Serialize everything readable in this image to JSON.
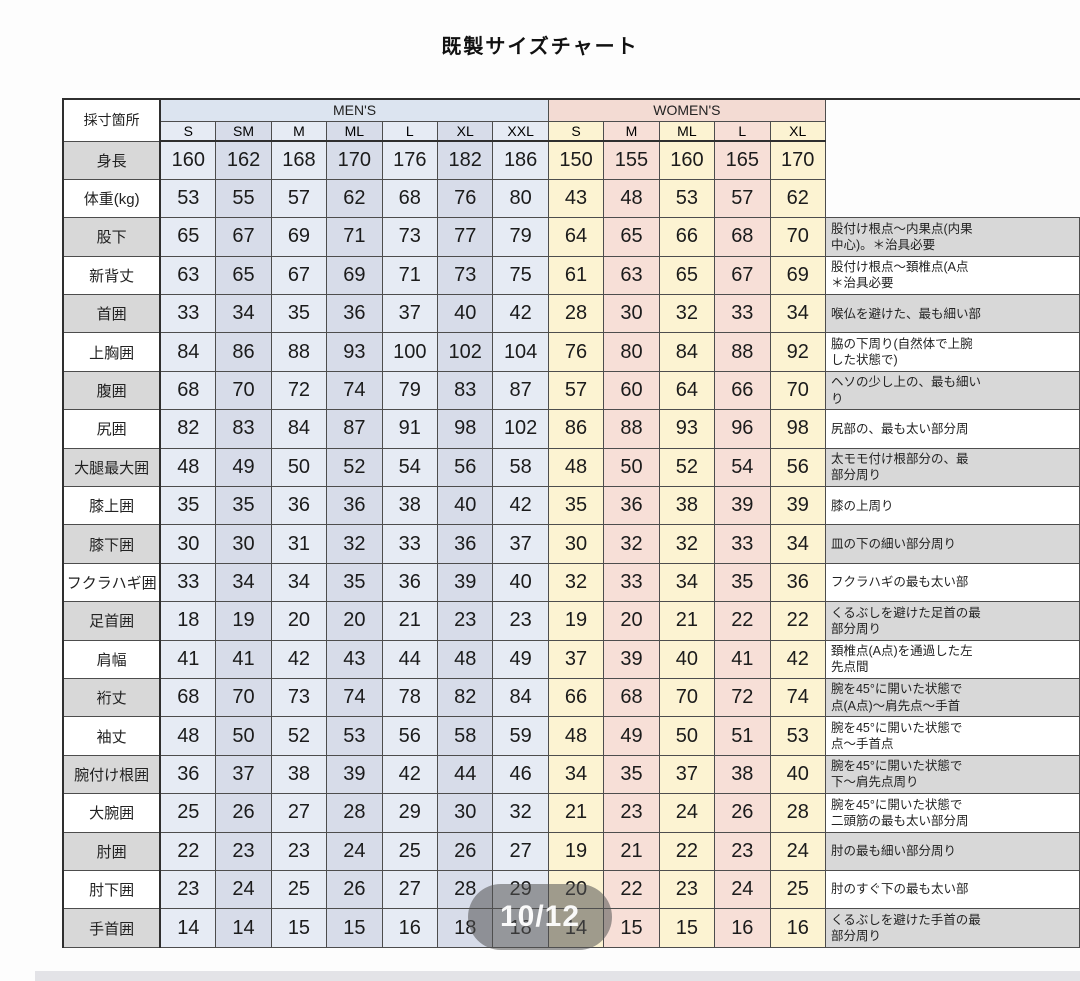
{
  "title": "既製サイズチャート",
  "overlay": {
    "page_indicator": "10/12"
  },
  "colors": {
    "mens_band": "#dce4f0",
    "womens_band": "#f3dbd3",
    "mens_col_light": "#e6ebf4",
    "mens_col_dark": "#d7dce9",
    "womens_col_yellow": "#fcf3d2",
    "womens_col_pink": "#f7dfd7",
    "label_grey": "#d8d8d8",
    "border": "#4d4d4d",
    "pill_bg": "rgba(82,82,82,0.55)"
  },
  "chart_data": {
    "type": "table",
    "title": "既製サイズチャート",
    "corner_header": "採寸箇所",
    "groups": [
      {
        "label": "MEN'S",
        "sizes": [
          "S",
          "SM",
          "M",
          "ML",
          "L",
          "XL",
          "XXL"
        ]
      },
      {
        "label": "WOMEN'S",
        "sizes": [
          "S",
          "M",
          "ML",
          "L",
          "XL"
        ]
      }
    ],
    "rows": [
      {
        "label": "身長",
        "men": [
          160,
          162,
          168,
          170,
          176,
          182,
          186
        ],
        "women": [
          150,
          155,
          160,
          165,
          170
        ],
        "note": ""
      },
      {
        "label": "体重(kg)",
        "men": [
          53,
          55,
          57,
          62,
          68,
          76,
          80
        ],
        "women": [
          43,
          48,
          53,
          57,
          62
        ],
        "note": ""
      },
      {
        "label": "股下",
        "men": [
          65,
          67,
          69,
          71,
          73,
          77,
          79
        ],
        "women": [
          64,
          65,
          66,
          68,
          70
        ],
        "note": "股付け根点～内果点(内果\n中心)。＊治具必要"
      },
      {
        "label": "新背丈",
        "men": [
          63,
          65,
          67,
          69,
          71,
          73,
          75
        ],
        "women": [
          61,
          63,
          65,
          67,
          69
        ],
        "note": "股付け根点～頚椎点(A点\n＊治具必要"
      },
      {
        "label": "首囲",
        "men": [
          33,
          34,
          35,
          36,
          37,
          40,
          42
        ],
        "women": [
          28,
          30,
          32,
          33,
          34
        ],
        "note": "喉仏を避けた、最も細い部"
      },
      {
        "label": "上胸囲",
        "men": [
          84,
          86,
          88,
          93,
          100,
          102,
          104
        ],
        "women": [
          76,
          80,
          84,
          88,
          92
        ],
        "note": "脇の下周り(自然体で上腕\nした状態で)"
      },
      {
        "label": "腹囲",
        "men": [
          68,
          70,
          72,
          74,
          79,
          83,
          87
        ],
        "women": [
          57,
          60,
          64,
          66,
          70
        ],
        "note": "ヘソの少し上の、最も細い\nり"
      },
      {
        "label": "尻囲",
        "men": [
          82,
          83,
          84,
          87,
          91,
          98,
          102
        ],
        "women": [
          86,
          88,
          93,
          96,
          98
        ],
        "note": "尻部の、最も太い部分周"
      },
      {
        "label": "大腿最大囲",
        "men": [
          48,
          49,
          50,
          52,
          54,
          56,
          58
        ],
        "women": [
          48,
          50,
          52,
          54,
          56
        ],
        "note": "太モモ付け根部分の、最\n部分周り"
      },
      {
        "label": "膝上囲",
        "men": [
          35,
          35,
          36,
          36,
          38,
          40,
          42
        ],
        "women": [
          35,
          36,
          38,
          39,
          39
        ],
        "note": "膝の上周り"
      },
      {
        "label": "膝下囲",
        "men": [
          30,
          30,
          31,
          32,
          33,
          36,
          37
        ],
        "women": [
          30,
          32,
          32,
          33,
          34
        ],
        "note": "皿の下の細い部分周り"
      },
      {
        "label": "フクラハギ囲",
        "men": [
          33,
          34,
          34,
          35,
          36,
          39,
          40
        ],
        "women": [
          32,
          33,
          34,
          35,
          36
        ],
        "note": "フクラハギの最も太い部"
      },
      {
        "label": "足首囲",
        "men": [
          18,
          19,
          20,
          20,
          21,
          23,
          23
        ],
        "women": [
          19,
          20,
          21,
          22,
          22
        ],
        "note": "くるぶしを避けた足首の最\n部分周り"
      },
      {
        "label": "肩幅",
        "men": [
          41,
          41,
          42,
          43,
          44,
          48,
          49
        ],
        "women": [
          37,
          39,
          40,
          41,
          42
        ],
        "note": "頚椎点(A点)を通過した左\n先点間"
      },
      {
        "label": "裄丈",
        "men": [
          68,
          70,
          73,
          74,
          78,
          82,
          84
        ],
        "women": [
          66,
          68,
          70,
          72,
          74
        ],
        "note": "腕を45°に開いた状態で\n点(A点)～肩先点～手首"
      },
      {
        "label": "袖丈",
        "men": [
          48,
          50,
          52,
          53,
          56,
          58,
          59
        ],
        "women": [
          48,
          49,
          50,
          51,
          53
        ],
        "note": "腕を45°に開いた状態で\n点～手首点"
      },
      {
        "label": "腕付け根囲",
        "men": [
          36,
          37,
          38,
          39,
          42,
          44,
          46
        ],
        "women": [
          34,
          35,
          37,
          38,
          40
        ],
        "note": "腕を45°に開いた状態で\n下～肩先点周り"
      },
      {
        "label": "大腕囲",
        "men": [
          25,
          26,
          27,
          28,
          29,
          30,
          32
        ],
        "women": [
          21,
          23,
          24,
          26,
          28
        ],
        "note": "腕を45°に開いた状態で\n二頭筋の最も太い部分周"
      },
      {
        "label": "肘囲",
        "men": [
          22,
          23,
          23,
          24,
          25,
          26,
          27
        ],
        "women": [
          19,
          21,
          22,
          23,
          24
        ],
        "note": "肘の最も細い部分周り"
      },
      {
        "label": "肘下囲",
        "men": [
          23,
          24,
          25,
          26,
          27,
          28,
          29
        ],
        "women": [
          20,
          22,
          23,
          24,
          25
        ],
        "note": "肘のすぐ下の最も太い部"
      },
      {
        "label": "手首囲",
        "men": [
          14,
          14,
          15,
          15,
          16,
          18,
          18
        ],
        "women": [
          14,
          15,
          15,
          16,
          16
        ],
        "note": "くるぶしを避けた手首の最\n部分周り"
      }
    ]
  }
}
